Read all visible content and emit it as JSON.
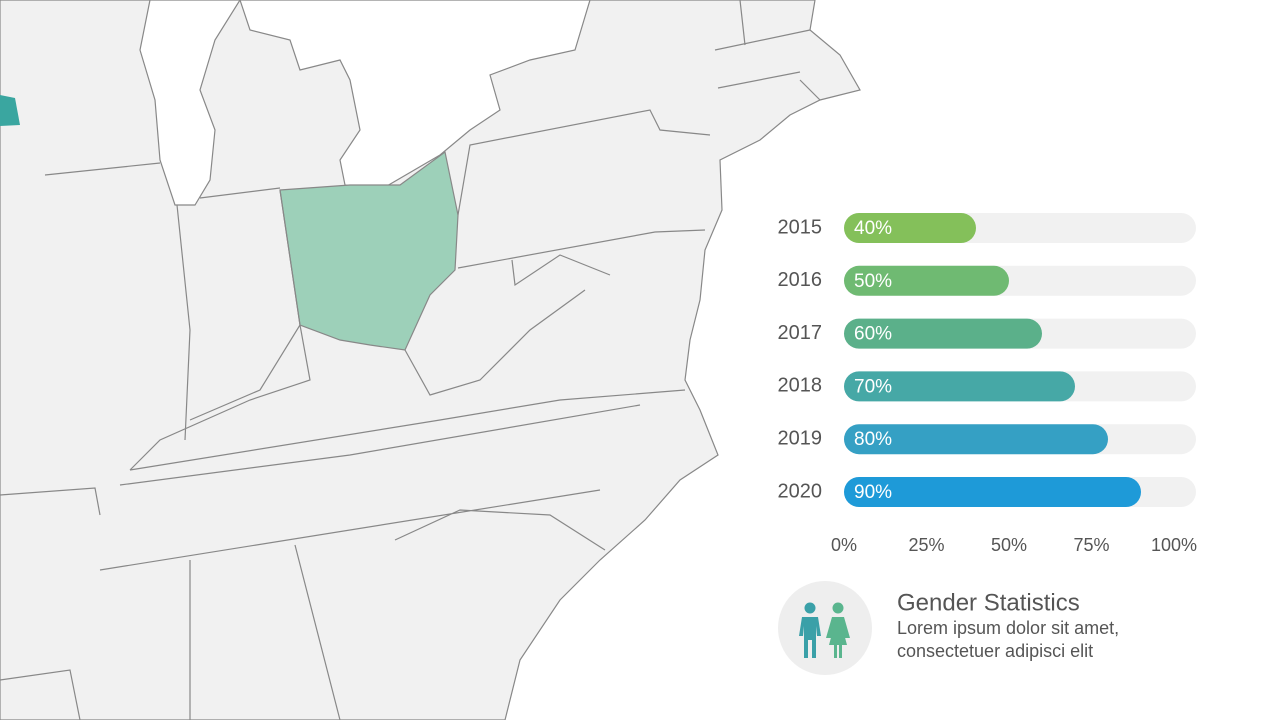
{
  "chart_data": {
    "type": "hbar",
    "categories": [
      "2015",
      "2016",
      "2017",
      "2018",
      "2019",
      "2020"
    ],
    "values": [
      40,
      50,
      60,
      70,
      80,
      90
    ],
    "value_labels": [
      "40%",
      "50%",
      "60%",
      "70%",
      "80%",
      "90%"
    ],
    "colors": [
      "#84c05a",
      "#6fba72",
      "#5bb08a",
      "#46a8a6",
      "#35a0c4",
      "#1e9ad8"
    ],
    "xlim": [
      0,
      100
    ],
    "xticks": [
      {
        "value": 0,
        "label": "0%"
      },
      {
        "value": 25,
        "label": "25%"
      },
      {
        "value": 50,
        "label": "50%"
      },
      {
        "value": 75,
        "label": "75%"
      },
      {
        "value": 100,
        "label": "100%"
      }
    ]
  },
  "info": {
    "title": "Gender Statistics",
    "lines": [
      "Lorem ipsum dolor sit amet,",
      "consectetuer adipisci elit"
    ]
  }
}
